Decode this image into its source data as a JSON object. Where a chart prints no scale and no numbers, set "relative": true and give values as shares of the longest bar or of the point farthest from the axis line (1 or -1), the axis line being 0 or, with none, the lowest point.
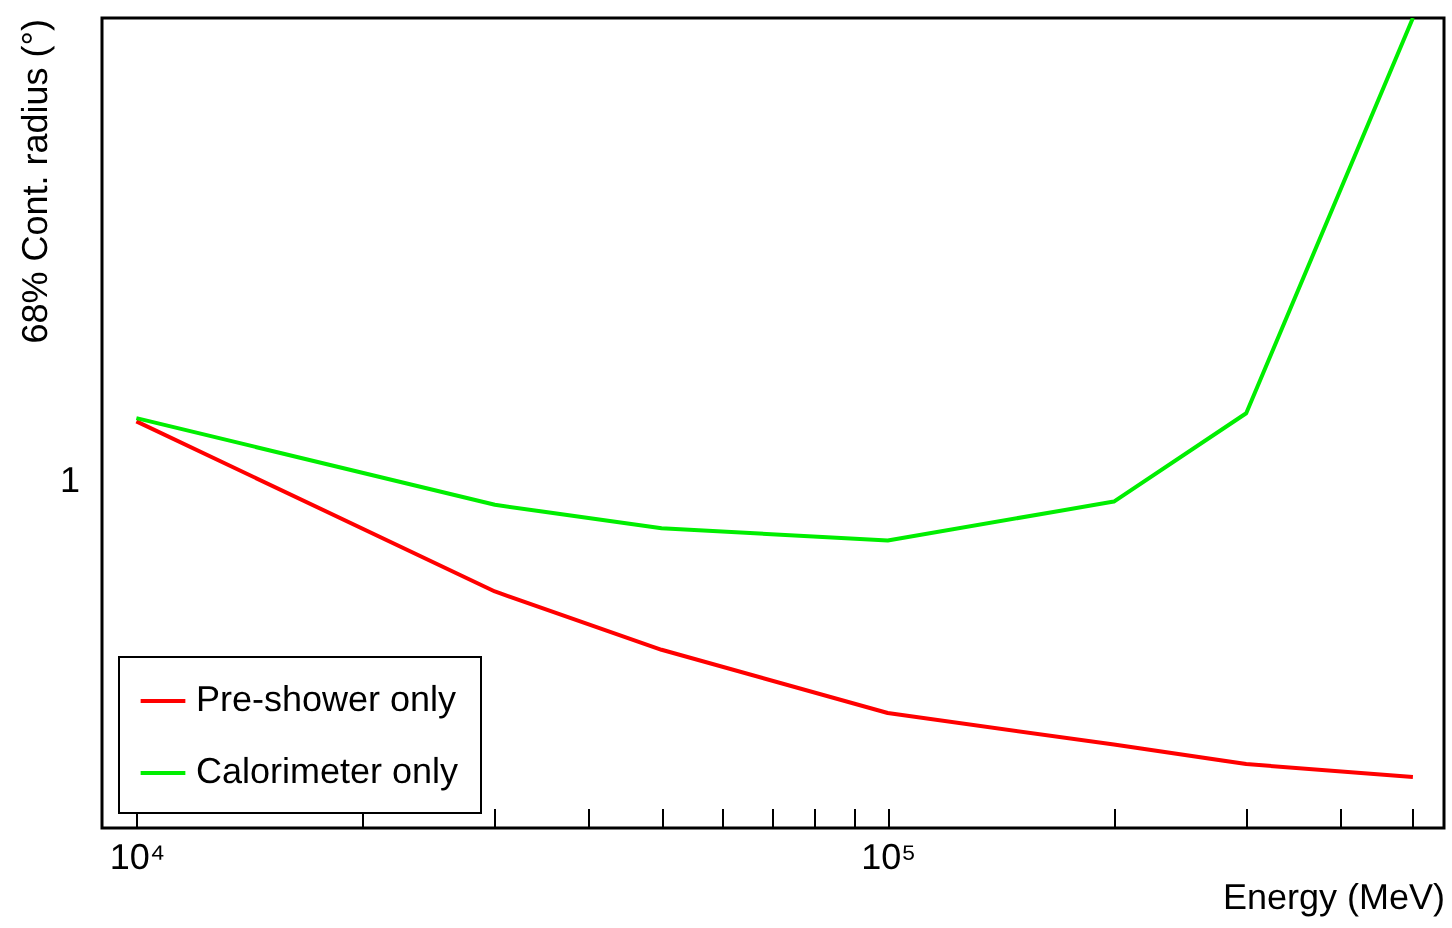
{
  "chart_data": {
    "type": "line",
    "xlabel": "Energy (MeV)",
    "ylabel": "68% Cont. radius (°)",
    "x": [
      10000,
      30000,
      50000,
      100000,
      200000,
      300000,
      500000
    ],
    "relative": true,
    "series": [
      {
        "name": "Pre-shower only",
        "color": "#ff0000",
        "values": [
          0.502,
          0.292,
          0.22,
          0.142,
          0.103,
          0.0789,
          0.0631
        ]
      },
      {
        "name": "Calorimeter only",
        "color": "#00ee00",
        "values": [
          0.506,
          0.399,
          0.37,
          0.355,
          0.403,
          0.512,
          1
        ]
      }
    ],
    "annotations": [
      "1"
    ],
    "log": "x",
    "xlim": [
      9000,
      550000
    ],
    "xticks": [
      {
        "value": 10000,
        "label": "10⁴"
      },
      {
        "value": 20000,
        "label": null
      },
      {
        "value": 30000,
        "label": null
      },
      {
        "value": 40000,
        "label": null
      },
      {
        "value": 50000,
        "label": null
      },
      {
        "value": 60000,
        "label": null
      },
      {
        "value": 70000,
        "label": null
      },
      {
        "value": 80000,
        "label": null
      },
      {
        "value": 90000,
        "label": null
      },
      {
        "value": 100000,
        "label": "10⁵"
      },
      {
        "value": 200000,
        "label": null
      },
      {
        "value": 300000,
        "label": null
      },
      {
        "value": 400000,
        "label": null
      },
      {
        "value": 500000,
        "label": null
      }
    ],
    "legend": "bottom left",
    "grid": false,
    "marker": "none",
    "line_style": "solid"
  }
}
